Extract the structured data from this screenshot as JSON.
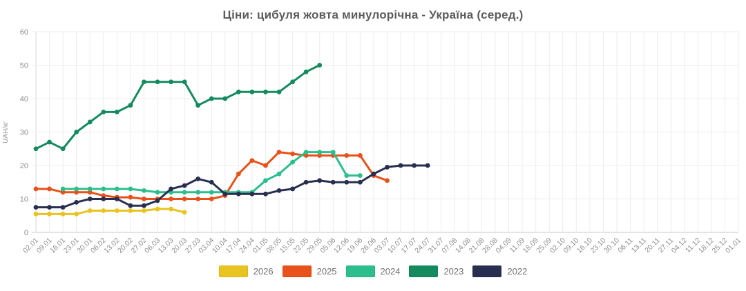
{
  "title": "Ціни: цибуля жовта минулорічна - Україна (серед.)",
  "chart_data": {
    "type": "line",
    "title": "Ціни: цибуля жовта минулорічна - Україна (серед.)",
    "xlabel": "",
    "ylabel": "UAH/кг",
    "ylim": [
      0,
      60
    ],
    "y_ticks": [
      0,
      10,
      20,
      30,
      40,
      50,
      60
    ],
    "grid": true,
    "legend_position": "bottom",
    "categories": [
      "02.01",
      "09.01",
      "16.01",
      "23.01",
      "30.01",
      "06.02",
      "13.02",
      "20.02",
      "27.02",
      "06.03",
      "13.03",
      "20.03",
      "27.03",
      "03.04",
      "10.04",
      "17.04",
      "24.04",
      "01.05",
      "08.05",
      "15.05",
      "22.05",
      "29.05",
      "05.06",
      "12.06",
      "19.06",
      "26.06",
      "03.07",
      "10.07",
      "17.07",
      "24.07",
      "31.07",
      "07.08",
      "14.08",
      "21.08",
      "28.08",
      "04.09",
      "11.09",
      "18.09",
      "25.09",
      "02.10",
      "09.10",
      "16.10",
      "23.10",
      "30.10",
      "06.11",
      "13.11",
      "20.11",
      "27.11",
      "04.12",
      "11.12",
      "18.12",
      "25.12",
      "01.01"
    ],
    "series": [
      {
        "name": "2026",
        "color": "#e9c41f",
        "start": 0,
        "values": [
          5.5,
          5.5,
          5.5,
          5.5,
          6.5,
          6.5,
          6.5,
          6.5,
          6.5,
          7,
          7,
          6
        ]
      },
      {
        "name": "2025",
        "color": "#e8511a",
        "start": 0,
        "values": [
          13,
          13,
          12,
          12,
          12,
          11,
          10.5,
          10.5,
          10,
          10,
          10,
          10,
          10,
          10,
          11,
          17.5,
          21.5,
          20,
          24,
          23.5,
          23,
          23,
          23,
          23,
          23,
          17,
          15.5
        ]
      },
      {
        "name": "2024",
        "color": "#2dbe8d",
        "start": 2,
        "values": [
          13,
          13,
          13,
          13,
          13,
          13,
          12.5,
          12,
          12,
          12,
          12,
          12,
          12,
          12,
          12,
          15.5,
          17.5,
          21,
          24,
          24,
          24,
          17,
          17
        ]
      },
      {
        "name": "2023",
        "color": "#148a5f",
        "start": 0,
        "values": [
          25,
          27,
          25,
          30,
          33,
          36,
          36,
          38,
          45,
          45,
          45,
          45,
          38,
          40,
          40,
          42,
          42,
          42,
          42,
          45,
          48,
          50
        ]
      },
      {
        "name": "2022",
        "color": "#282e4f",
        "start": 0,
        "values": [
          7.5,
          7.5,
          7.5,
          9,
          10,
          10,
          10,
          8,
          8,
          9.5,
          13,
          14,
          16,
          15,
          11.5,
          11.5,
          11.5,
          11.5,
          12.5,
          13,
          15,
          15.5,
          15,
          15,
          15,
          17.5,
          19.5,
          20,
          20,
          20
        ]
      }
    ]
  }
}
